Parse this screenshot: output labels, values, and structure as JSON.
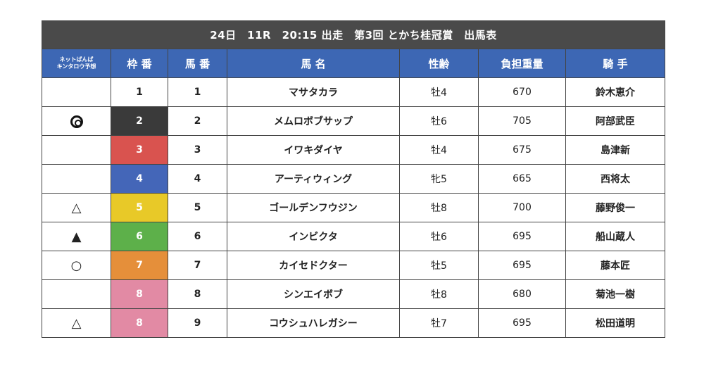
{
  "title": "24日　11R　20:15 出走　第3回 とかち桂冠賞　出馬表",
  "headers": {
    "yoso_line1": "ネットばんば",
    "yoso_line2": "キンタロウ予想",
    "waku": "枠 番",
    "umaban": "馬 番",
    "name": "馬 名",
    "age": "性齢",
    "weight": "負担重量",
    "jockey": "騎 手"
  },
  "colors": {
    "title_bg": "#4a4a4a",
    "header_bg": "#3d67b4",
    "waku_1": "#ffffff",
    "waku_2": "#3a3a3a",
    "waku_3": "#d9534f",
    "waku_4": "#4466b8",
    "waku_5": "#e8c928",
    "waku_6": "#5db04a",
    "waku_7": "#e58f3a",
    "waku_8": "#e28aa4"
  },
  "rows": [
    {
      "mark": "",
      "waku": "1",
      "umaban": "1",
      "name": "マサタカラ",
      "age": "牡4",
      "weight": "670",
      "jockey": "鈴木恵介"
    },
    {
      "mark": "◎",
      "waku": "2",
      "umaban": "2",
      "name": "メムロボブサップ",
      "age": "牡6",
      "weight": "705",
      "jockey": "阿部武臣"
    },
    {
      "mark": "",
      "waku": "3",
      "umaban": "3",
      "name": "イワキダイヤ",
      "age": "牡4",
      "weight": "675",
      "jockey": "島津新"
    },
    {
      "mark": "",
      "waku": "4",
      "umaban": "4",
      "name": "アーティウィング",
      "age": "牝5",
      "weight": "665",
      "jockey": "西将太"
    },
    {
      "mark": "△",
      "waku": "5",
      "umaban": "5",
      "name": "ゴールデンフウジン",
      "age": "牡8",
      "weight": "700",
      "jockey": "藤野俊一"
    },
    {
      "mark": "▲",
      "waku": "6",
      "umaban": "6",
      "name": "インビクタ",
      "age": "牡6",
      "weight": "695",
      "jockey": "船山蔵人"
    },
    {
      "mark": "○",
      "waku": "7",
      "umaban": "7",
      "name": "カイセドクター",
      "age": "牡5",
      "weight": "695",
      "jockey": "藤本匠"
    },
    {
      "mark": "",
      "waku": "8",
      "umaban": "8",
      "name": "シンエイボブ",
      "age": "牡8",
      "weight": "680",
      "jockey": "菊池一樹"
    },
    {
      "mark": "△",
      "waku": "8",
      "umaban": "9",
      "name": "コウシュハレガシー",
      "age": "牡7",
      "weight": "695",
      "jockey": "松田道明"
    }
  ]
}
